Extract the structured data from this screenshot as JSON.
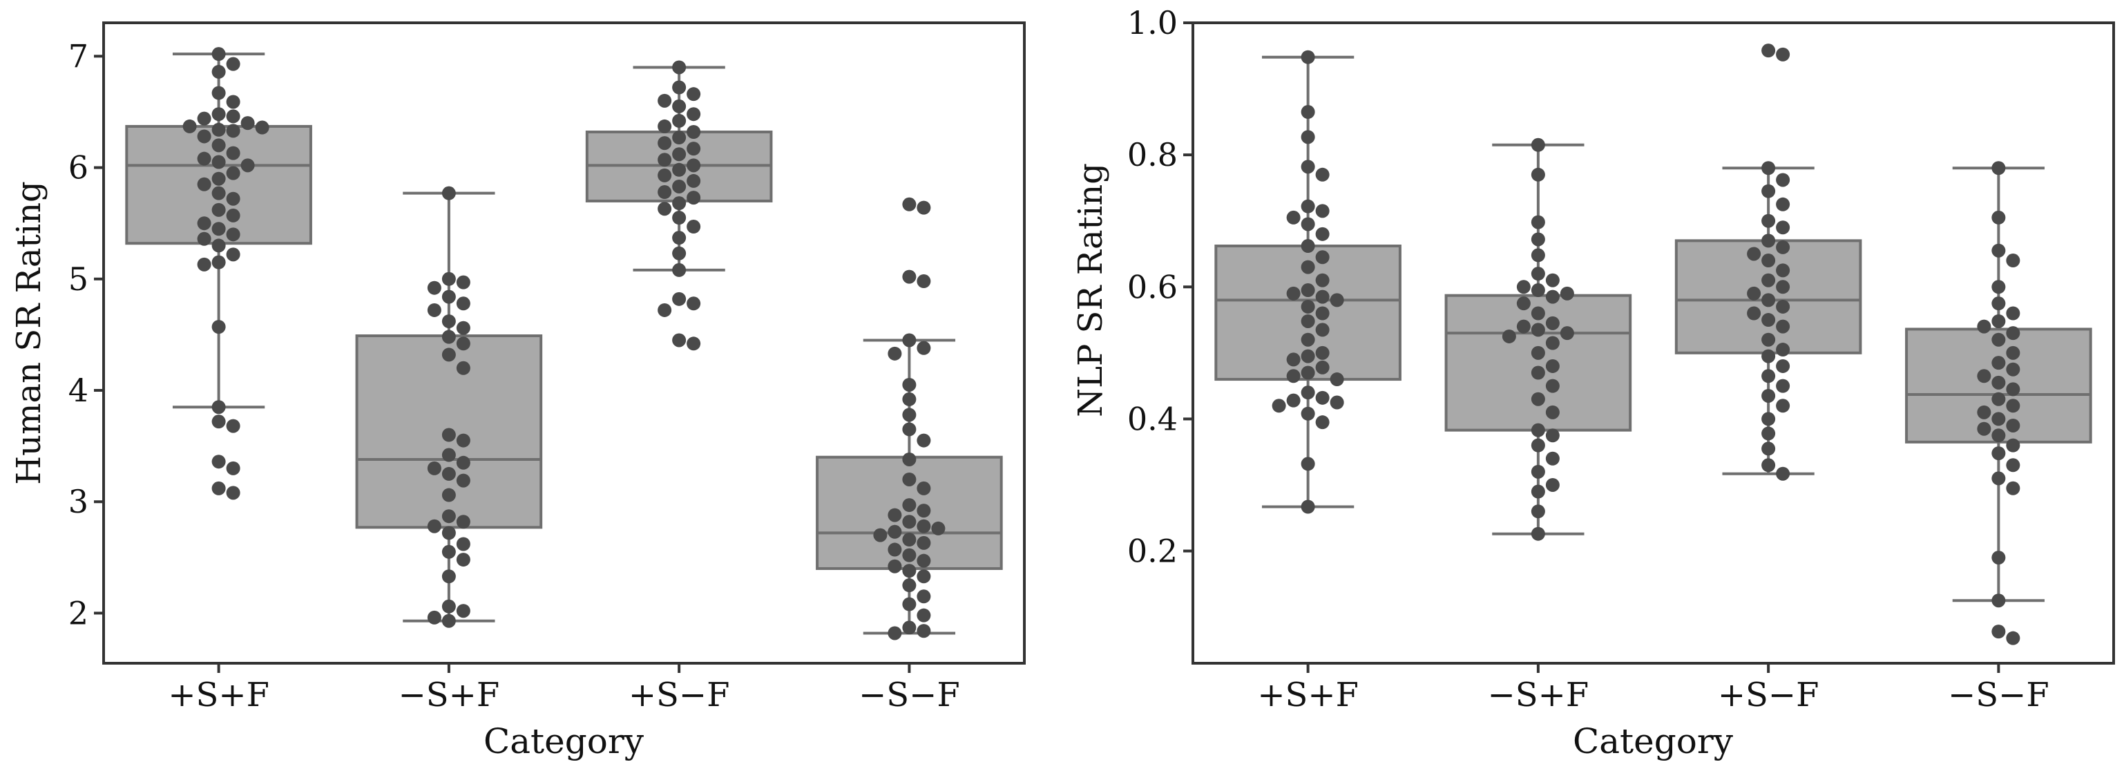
{
  "colors": {
    "box_fill": "#a9a9a9",
    "box_stroke": "#6f6f6f",
    "point": "#4a4a4a",
    "frame": "#333333"
  },
  "chart_data": [
    {
      "type": "box",
      "xlabel": "Category",
      "ylabel": "Human SR Rating",
      "categories": [
        "+S+F",
        "−S+F",
        "+S−F",
        "−S−F"
      ],
      "ylim": [
        1.55,
        7.3
      ],
      "yticks": [
        2,
        3,
        4,
        5,
        6,
        7
      ],
      "ytick_labels": [
        "2",
        "3",
        "4",
        "5",
        "6",
        "7"
      ],
      "grid": false,
      "boxes": [
        {
          "category": "+S+F",
          "whisker_low": 3.85,
          "q1": 5.32,
          "median": 6.02,
          "q3": 6.37,
          "whisker_high": 7.02
        },
        {
          "category": "−S+F",
          "whisker_low": 1.93,
          "q1": 2.77,
          "median": 3.38,
          "q3": 4.49,
          "whisker_high": 5.77
        },
        {
          "category": "+S−F",
          "whisker_low": 5.08,
          "q1": 5.7,
          "median": 6.02,
          "q3": 6.32,
          "whisker_high": 6.9
        },
        {
          "category": "−S−F",
          "whisker_low": 1.82,
          "q1": 2.4,
          "median": 2.72,
          "q3": 3.4,
          "whisker_high": 4.45
        }
      ],
      "points": [
        [
          7.02,
          6.93,
          6.86,
          6.67,
          6.59,
          6.48,
          6.46,
          6.44,
          6.4,
          6.37,
          6.36,
          6.34,
          6.33,
          6.28,
          6.2,
          6.13,
          6.08,
          6.05,
          6.02,
          5.95,
          5.9,
          5.85,
          5.77,
          5.72,
          5.62,
          5.57,
          5.5,
          5.45,
          5.4,
          5.36,
          5.3,
          5.22,
          5.15,
          5.13,
          4.57,
          3.85,
          3.72,
          3.68,
          3.36,
          3.3,
          3.12,
          3.08
        ],
        [
          5.77,
          5.0,
          4.97,
          4.92,
          4.84,
          4.78,
          4.72,
          4.62,
          4.56,
          4.48,
          4.42,
          4.32,
          4.2,
          3.6,
          3.55,
          3.42,
          3.35,
          3.3,
          3.25,
          3.19,
          3.06,
          2.87,
          2.82,
          2.78,
          2.72,
          2.62,
          2.55,
          2.48,
          2.33,
          2.06,
          2.02,
          1.96,
          1.93
        ],
        [
          6.9,
          6.72,
          6.66,
          6.6,
          6.55,
          6.48,
          6.42,
          6.37,
          6.32,
          6.27,
          6.22,
          6.17,
          6.12,
          6.07,
          6.02,
          5.98,
          5.93,
          5.88,
          5.83,
          5.78,
          5.73,
          5.68,
          5.63,
          5.55,
          5.47,
          5.37,
          5.23,
          5.08,
          4.82,
          4.78,
          4.72,
          4.45,
          4.42
        ],
        [
          5.67,
          5.64,
          5.02,
          4.98,
          4.45,
          4.38,
          4.33,
          4.05,
          3.92,
          3.78,
          3.65,
          3.55,
          3.38,
          3.2,
          3.12,
          2.97,
          2.92,
          2.88,
          2.82,
          2.78,
          2.76,
          2.73,
          2.7,
          2.66,
          2.63,
          2.57,
          2.52,
          2.47,
          2.42,
          2.38,
          2.33,
          2.25,
          2.15,
          2.08,
          1.98,
          1.87,
          1.84,
          1.82
        ]
      ]
    },
    {
      "type": "box",
      "xlabel": "Category",
      "ylabel": "NLP SR Rating",
      "categories": [
        "+S+F",
        "−S+F",
        "+S−F",
        "−S−F"
      ],
      "ylim": [
        0.03,
        1.0
      ],
      "yticks": [
        0.2,
        0.4,
        0.6,
        0.8,
        1.0
      ],
      "ytick_labels": [
        "0.2",
        "0.4",
        "0.6",
        "0.8",
        "1.0"
      ],
      "grid": false,
      "boxes": [
        {
          "category": "+S+F",
          "whisker_low": 0.267,
          "q1": 0.46,
          "median": 0.58,
          "q3": 0.662,
          "whisker_high": 0.948
        },
        {
          "category": "−S+F",
          "whisker_low": 0.226,
          "q1": 0.383,
          "median": 0.53,
          "q3": 0.587,
          "whisker_high": 0.815
        },
        {
          "category": "+S−F",
          "whisker_low": 0.317,
          "q1": 0.5,
          "median": 0.58,
          "q3": 0.67,
          "whisker_high": 0.78
        },
        {
          "category": "−S−F",
          "whisker_low": 0.125,
          "q1": 0.365,
          "median": 0.437,
          "q3": 0.536,
          "whisker_high": 0.78
        }
      ],
      "points": [
        [
          0.948,
          0.865,
          0.827,
          0.782,
          0.77,
          0.722,
          0.715,
          0.705,
          0.695,
          0.68,
          0.662,
          0.645,
          0.63,
          0.61,
          0.595,
          0.59,
          0.585,
          0.58,
          0.57,
          0.56,
          0.548,
          0.535,
          0.52,
          0.5,
          0.495,
          0.49,
          0.478,
          0.47,
          0.465,
          0.46,
          0.44,
          0.432,
          0.428,
          0.425,
          0.42,
          0.408,
          0.395,
          0.332,
          0.267
        ],
        [
          0.815,
          0.77,
          0.698,
          0.672,
          0.648,
          0.62,
          0.61,
          0.6,
          0.595,
          0.59,
          0.585,
          0.575,
          0.56,
          0.545,
          0.54,
          0.535,
          0.53,
          0.525,
          0.515,
          0.5,
          0.48,
          0.47,
          0.45,
          0.43,
          0.41,
          0.383,
          0.375,
          0.36,
          0.34,
          0.32,
          0.3,
          0.29,
          0.26,
          0.226
        ],
        [
          0.958,
          0.952,
          0.78,
          0.762,
          0.745,
          0.725,
          0.7,
          0.69,
          0.67,
          0.66,
          0.65,
          0.64,
          0.625,
          0.61,
          0.6,
          0.59,
          0.58,
          0.57,
          0.56,
          0.55,
          0.54,
          0.52,
          0.505,
          0.495,
          0.48,
          0.465,
          0.45,
          0.435,
          0.42,
          0.4,
          0.378,
          0.355,
          0.33,
          0.317
        ],
        [
          0.78,
          0.705,
          0.655,
          0.64,
          0.6,
          0.575,
          0.56,
          0.548,
          0.54,
          0.53,
          0.52,
          0.5,
          0.485,
          0.475,
          0.465,
          0.455,
          0.445,
          0.43,
          0.42,
          0.41,
          0.4,
          0.39,
          0.385,
          0.375,
          0.36,
          0.348,
          0.33,
          0.31,
          0.295,
          0.19,
          0.125,
          0.078,
          0.068
        ]
      ]
    }
  ]
}
